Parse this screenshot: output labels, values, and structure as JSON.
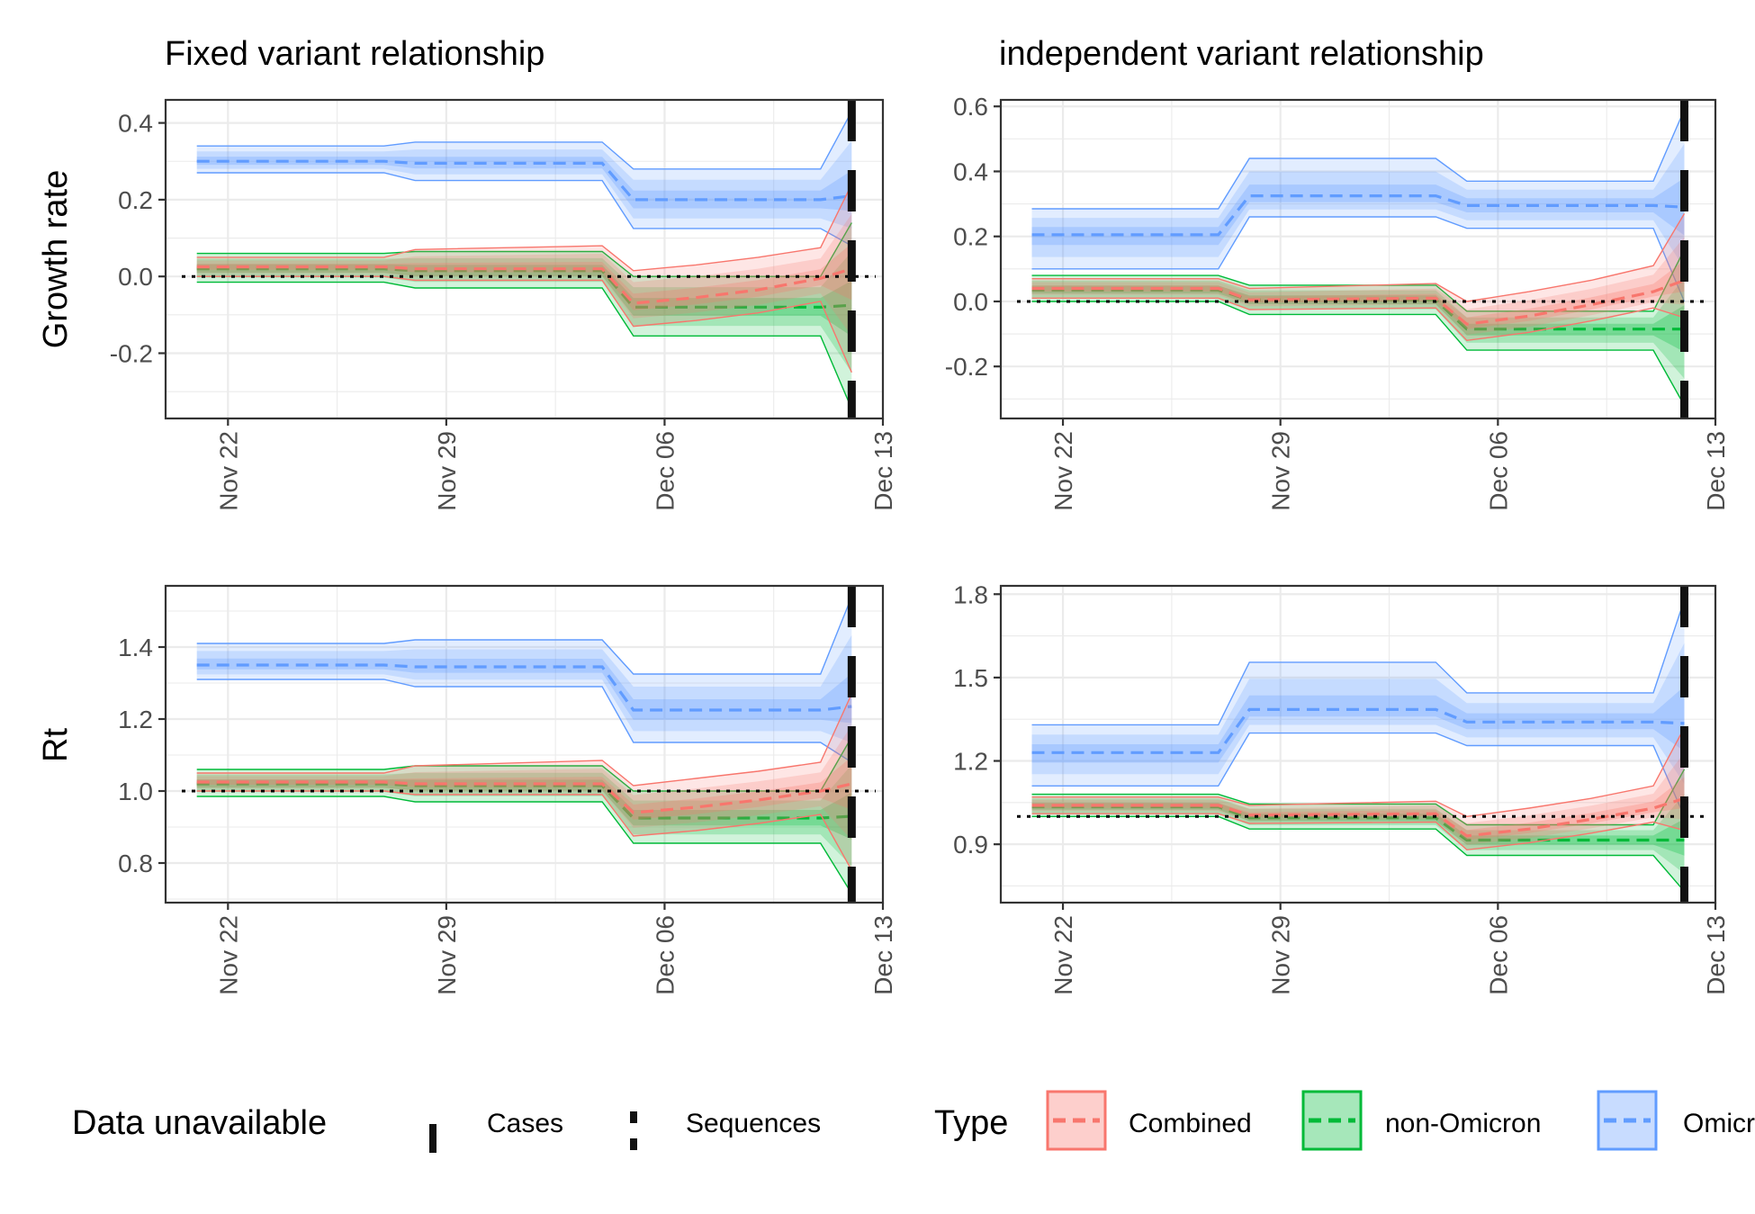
{
  "figure": {
    "legend": {
      "data_title": "Data unavailable",
      "data_items": [
        "Cases",
        "Sequences"
      ],
      "type_title": "Type",
      "type_items": [
        "Combined",
        "non-Omicron",
        "Omicron"
      ]
    },
    "row_labels": [
      "Growth rate",
      "Rt"
    ]
  },
  "chart_data": [
    {
      "type": "line",
      "panel": "growth-fixed",
      "title": "Fixed variant relationship",
      "xlabel": "",
      "ylabel": "Growth rate",
      "x_ticks": [
        "Nov 22",
        "Nov 29",
        "Dec 06",
        "Dec 13"
      ],
      "y_ticks": [
        "0.4",
        "0.2",
        "0.0",
        "-0.2"
      ],
      "ylim": [
        -0.37,
        0.46
      ],
      "xlim": [
        "2021-11-20",
        "2021-12-13"
      ],
      "reference_line": 0,
      "data_unavailable_date": "2021-12-12",
      "grid": true,
      "series": [
        {
          "name": "Omicron",
          "color": "#619CFF",
          "x": [
            "2021-11-21",
            "2021-11-27",
            "2021-11-28",
            "2021-12-04",
            "2021-12-05",
            "2021-12-11",
            "2021-12-12"
          ],
          "median": [
            0.3,
            0.3,
            0.295,
            0.295,
            0.2,
            0.2,
            0.21
          ],
          "lower": [
            0.27,
            0.27,
            0.25,
            0.25,
            0.125,
            0.125,
            0.08
          ],
          "upper": [
            0.34,
            0.34,
            0.35,
            0.35,
            0.28,
            0.28,
            0.43
          ]
        },
        {
          "name": "non-Omicron",
          "color": "#00BA38",
          "x": [
            "2021-11-21",
            "2021-11-27",
            "2021-11-28",
            "2021-12-04",
            "2021-12-05",
            "2021-12-11",
            "2021-12-12"
          ],
          "median": [
            0.02,
            0.02,
            0.015,
            0.015,
            -0.08,
            -0.08,
            -0.075
          ],
          "lower": [
            -0.015,
            -0.015,
            -0.03,
            -0.03,
            -0.155,
            -0.155,
            -0.345
          ],
          "upper": [
            0.06,
            0.06,
            0.065,
            0.065,
            0.0,
            0.0,
            0.14
          ]
        },
        {
          "name": "Combined",
          "color": "#F8766D",
          "x": [
            "2021-11-21",
            "2021-11-27",
            "2021-11-28",
            "2021-12-04",
            "2021-12-05",
            "2021-12-07",
            "2021-12-09",
            "2021-12-11",
            "2021-12-12"
          ],
          "median": [
            0.025,
            0.025,
            0.02,
            0.02,
            -0.07,
            -0.055,
            -0.035,
            -0.005,
            0.02
          ],
          "lower": [
            0.0,
            0.0,
            -0.01,
            -0.01,
            -0.13,
            -0.115,
            -0.095,
            -0.065,
            -0.25
          ],
          "upper": [
            0.05,
            0.05,
            0.07,
            0.08,
            0.015,
            0.03,
            0.05,
            0.075,
            0.24
          ]
        }
      ]
    },
    {
      "type": "line",
      "panel": "growth-independent",
      "title": "independent variant relationship",
      "xlabel": "",
      "ylabel": "",
      "x_ticks": [
        "Nov 22",
        "Nov 29",
        "Dec 06",
        "Dec 13"
      ],
      "y_ticks": [
        "0.6",
        "0.4",
        "0.2",
        "0.0",
        "-0.2"
      ],
      "ylim": [
        -0.36,
        0.62
      ],
      "xlim": [
        "2021-11-20",
        "2021-12-13"
      ],
      "reference_line": 0,
      "data_unavailable_date": "2021-12-12",
      "grid": true,
      "series": [
        {
          "name": "Omicron",
          "color": "#619CFF",
          "x": [
            "2021-11-21",
            "2021-11-27",
            "2021-11-28",
            "2021-12-04",
            "2021-12-05",
            "2021-12-11",
            "2021-12-12"
          ],
          "median": [
            0.205,
            0.205,
            0.325,
            0.325,
            0.295,
            0.295,
            0.29
          ],
          "lower": [
            0.1,
            0.1,
            0.26,
            0.26,
            0.225,
            0.225,
            0.0
          ],
          "upper": [
            0.285,
            0.285,
            0.44,
            0.44,
            0.37,
            0.37,
            0.59
          ]
        },
        {
          "name": "non-Omicron",
          "color": "#00BA38",
          "x": [
            "2021-11-21",
            "2021-11-27",
            "2021-11-28",
            "2021-12-04",
            "2021-12-05",
            "2021-12-11",
            "2021-12-12"
          ],
          "median": [
            0.035,
            0.035,
            0.005,
            0.005,
            -0.085,
            -0.085,
            -0.085
          ],
          "lower": [
            0.0,
            0.0,
            -0.04,
            -0.04,
            -0.15,
            -0.15,
            -0.32
          ],
          "upper": [
            0.08,
            0.08,
            0.05,
            0.05,
            -0.03,
            -0.03,
            0.16
          ]
        },
        {
          "name": "Combined",
          "color": "#F8766D",
          "x": [
            "2021-11-21",
            "2021-11-27",
            "2021-11-28",
            "2021-12-04",
            "2021-12-05",
            "2021-12-07",
            "2021-12-09",
            "2021-12-11",
            "2021-12-12"
          ],
          "median": [
            0.04,
            0.04,
            0.005,
            0.01,
            -0.07,
            -0.045,
            -0.01,
            0.03,
            0.065
          ],
          "lower": [
            0.01,
            0.01,
            -0.025,
            -0.02,
            -0.12,
            -0.095,
            -0.06,
            -0.02,
            -0.05
          ],
          "upper": [
            0.07,
            0.07,
            0.04,
            0.055,
            0.0,
            0.03,
            0.065,
            0.11,
            0.27
          ]
        }
      ]
    },
    {
      "type": "line",
      "panel": "rt-fixed",
      "title": "",
      "xlabel": "",
      "ylabel": "Rt",
      "x_ticks": [
        "Nov 22",
        "Nov 29",
        "Dec 06",
        "Dec 13"
      ],
      "y_ticks": [
        "1.4",
        "1.2",
        "1.0",
        "0.8"
      ],
      "ylim": [
        0.69,
        1.57
      ],
      "xlim": [
        "2021-11-20",
        "2021-12-13"
      ],
      "reference_line": 1,
      "data_unavailable_date": "2021-12-12",
      "grid": true,
      "series": [
        {
          "name": "Omicron",
          "color": "#619CFF",
          "x": [
            "2021-11-21",
            "2021-11-27",
            "2021-11-28",
            "2021-12-04",
            "2021-12-05",
            "2021-12-11",
            "2021-12-12"
          ],
          "median": [
            1.35,
            1.35,
            1.345,
            1.345,
            1.225,
            1.225,
            1.235
          ],
          "lower": [
            1.31,
            1.31,
            1.29,
            1.29,
            1.135,
            1.135,
            1.08
          ],
          "upper": [
            1.41,
            1.41,
            1.42,
            1.42,
            1.325,
            1.325,
            1.54
          ]
        },
        {
          "name": "non-Omicron",
          "color": "#00BA38",
          "x": [
            "2021-11-21",
            "2021-11-27",
            "2021-11-28",
            "2021-12-04",
            "2021-12-05",
            "2021-12-11",
            "2021-12-12"
          ],
          "median": [
            1.02,
            1.02,
            1.015,
            1.015,
            0.925,
            0.925,
            0.93
          ],
          "lower": [
            0.985,
            0.985,
            0.97,
            0.97,
            0.855,
            0.855,
            0.715
          ],
          "upper": [
            1.06,
            1.06,
            1.07,
            1.07,
            1.0,
            1.0,
            1.15
          ]
        },
        {
          "name": "Combined",
          "color": "#F8766D",
          "x": [
            "2021-11-21",
            "2021-11-27",
            "2021-11-28",
            "2021-12-04",
            "2021-12-05",
            "2021-12-07",
            "2021-12-09",
            "2021-12-11",
            "2021-12-12"
          ],
          "median": [
            1.025,
            1.025,
            1.02,
            1.02,
            0.94,
            0.955,
            0.975,
            1.0,
            1.02
          ],
          "lower": [
            1.0,
            1.0,
            0.99,
            0.99,
            0.875,
            0.89,
            0.91,
            0.935,
            0.78
          ],
          "upper": [
            1.05,
            1.05,
            1.07,
            1.085,
            1.015,
            1.035,
            1.055,
            1.08,
            1.27
          ]
        }
      ]
    },
    {
      "type": "line",
      "panel": "rt-independent",
      "title": "",
      "xlabel": "",
      "ylabel": "",
      "x_ticks": [
        "Nov 22",
        "Nov 29",
        "Dec 06",
        "Dec 13"
      ],
      "y_ticks": [
        "1.8",
        "1.5",
        "1.2",
        "0.9"
      ],
      "ylim": [
        0.69,
        1.83
      ],
      "xlim": [
        "2021-11-20",
        "2021-12-13"
      ],
      "reference_line": 1,
      "data_unavailable_date": "2021-12-12",
      "grid": true,
      "series": [
        {
          "name": "Omicron",
          "color": "#619CFF",
          "x": [
            "2021-11-21",
            "2021-11-27",
            "2021-11-28",
            "2021-12-04",
            "2021-12-05",
            "2021-12-11",
            "2021-12-12"
          ],
          "median": [
            1.23,
            1.23,
            1.385,
            1.385,
            1.34,
            1.34,
            1.335
          ],
          "lower": [
            1.11,
            1.11,
            1.3,
            1.3,
            1.255,
            1.255,
            1.0
          ],
          "upper": [
            1.33,
            1.33,
            1.555,
            1.555,
            1.445,
            1.445,
            1.78
          ]
        },
        {
          "name": "non-Omicron",
          "color": "#00BA38",
          "x": [
            "2021-11-21",
            "2021-11-27",
            "2021-11-28",
            "2021-12-04",
            "2021-12-05",
            "2021-12-11",
            "2021-12-12"
          ],
          "median": [
            1.035,
            1.035,
            0.995,
            0.995,
            0.915,
            0.915,
            0.915
          ],
          "lower": [
            1.0,
            1.0,
            0.955,
            0.955,
            0.86,
            0.86,
            0.73
          ],
          "upper": [
            1.08,
            1.08,
            1.045,
            1.045,
            0.97,
            0.97,
            1.17
          ]
        },
        {
          "name": "Combined",
          "color": "#F8766D",
          "x": [
            "2021-11-21",
            "2021-11-27",
            "2021-11-28",
            "2021-12-04",
            "2021-12-05",
            "2021-12-07",
            "2021-12-09",
            "2021-12-11",
            "2021-12-12"
          ],
          "median": [
            1.04,
            1.04,
            1.005,
            1.01,
            0.93,
            0.955,
            0.99,
            1.03,
            1.065
          ],
          "lower": [
            1.01,
            1.01,
            0.975,
            0.98,
            0.88,
            0.905,
            0.94,
            0.98,
            0.95
          ],
          "upper": [
            1.07,
            1.07,
            1.04,
            1.055,
            1.0,
            1.03,
            1.065,
            1.11,
            1.32
          ]
        }
      ]
    }
  ]
}
